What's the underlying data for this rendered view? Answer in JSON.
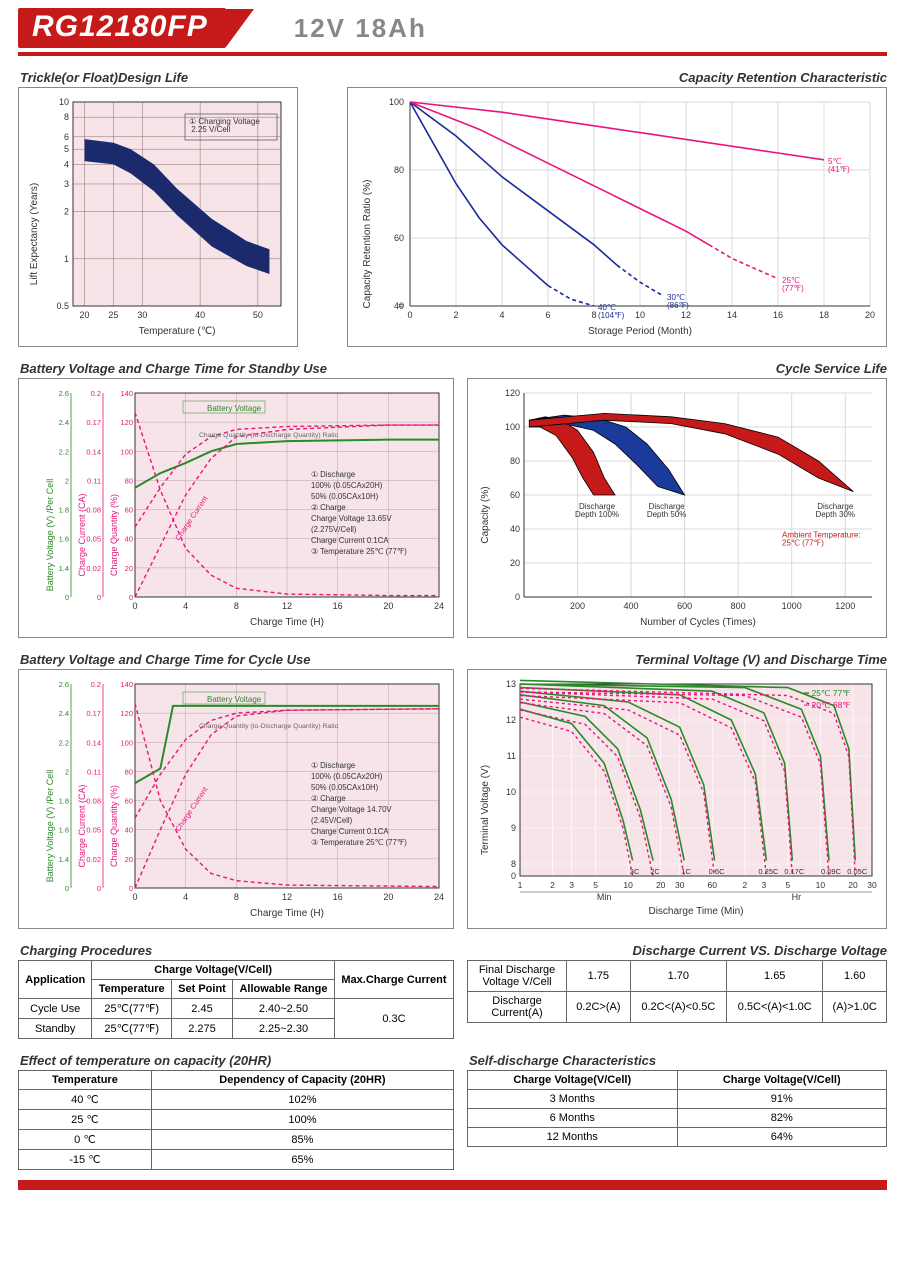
{
  "header": {
    "model": "RG12180FP",
    "spec": "12V  18Ah"
  },
  "chart_trickle": {
    "type": "area-band",
    "title": "Trickle(or Float)Design Life",
    "xlabel": "Temperature (℃)",
    "ylabel": "Lift  Expectancy  (Years)",
    "xticks": [
      20,
      25,
      30,
      40,
      50
    ],
    "yticks": [
      0.5,
      1,
      2,
      3,
      4,
      5,
      6,
      8,
      10
    ],
    "bg": "#f6e4e8",
    "grid": "#8a6a70",
    "band_color": "#1a2a6c",
    "band_upper": [
      [
        20,
        5.8
      ],
      [
        25,
        5.5
      ],
      [
        28,
        5.0
      ],
      [
        32,
        4.0
      ],
      [
        36,
        2.8
      ],
      [
        42,
        1.8
      ],
      [
        48,
        1.3
      ],
      [
        52,
        1.15
      ]
    ],
    "band_lower": [
      [
        20,
        4.2
      ],
      [
        25,
        4.0
      ],
      [
        28,
        3.5
      ],
      [
        32,
        2.7
      ],
      [
        36,
        1.9
      ],
      [
        42,
        1.2
      ],
      [
        48,
        0.9
      ],
      [
        52,
        0.8
      ]
    ],
    "callout": "① Charging Voltage\n    2.25 V/Cell"
  },
  "chart_retention": {
    "type": "line",
    "title": "Capacity  Retention  Characteristic",
    "xlabel": "Storage Period (Month)",
    "ylabel": "Capacity Retention Ratio (%)",
    "xticks": [
      0,
      2,
      4,
      6,
      8,
      10,
      12,
      14,
      16,
      18,
      20
    ],
    "yticks": [
      40,
      60,
      80,
      100
    ],
    "y_break": true,
    "bg": "#fff",
    "grid": "#d9d9d9",
    "series": [
      {
        "label": "40℃\n(104℉)",
        "color": "#1a2a9c",
        "dash": false,
        "data": [
          [
            0,
            100
          ],
          [
            1,
            88
          ],
          [
            2,
            76
          ],
          [
            3,
            66
          ],
          [
            4,
            58
          ],
          [
            5,
            52
          ],
          [
            6,
            46
          ]
        ],
        "dash_tail": [
          [
            6,
            46
          ],
          [
            7,
            42
          ],
          [
            8,
            40
          ]
        ]
      },
      {
        "label": "30℃\n(86℉)",
        "color": "#1a2a9c",
        "dash": false,
        "data": [
          [
            0,
            100
          ],
          [
            2,
            90
          ],
          [
            4,
            78
          ],
          [
            6,
            68
          ],
          [
            8,
            58
          ],
          [
            9,
            52
          ]
        ],
        "dash_tail": [
          [
            9,
            52
          ],
          [
            10,
            47
          ],
          [
            11,
            43
          ]
        ]
      },
      {
        "label": "25℃\n(77℉)",
        "color": "#e8157a",
        "dash": false,
        "data": [
          [
            0,
            100
          ],
          [
            3,
            92
          ],
          [
            6,
            82
          ],
          [
            9,
            72
          ],
          [
            12,
            62
          ],
          [
            13,
            58
          ]
        ],
        "dash_tail": [
          [
            13,
            58
          ],
          [
            14,
            54
          ],
          [
            15,
            51
          ],
          [
            16,
            48
          ]
        ]
      },
      {
        "label": "5℃\n(41℉)",
        "color": "#e8157a",
        "dash": false,
        "data": [
          [
            0,
            100
          ],
          [
            4,
            97
          ],
          [
            8,
            93
          ],
          [
            12,
            89
          ],
          [
            16,
            85
          ],
          [
            18,
            83
          ]
        ]
      }
    ]
  },
  "chart_standby": {
    "type": "multi-axis-line",
    "title": "Battery Voltage and Charge Time for Standby Use",
    "xlabel": "Charge Time (H)",
    "xticks": [
      0,
      4,
      8,
      12,
      16,
      20,
      24
    ],
    "axes": [
      {
        "label": "Charge Quantity (%)",
        "color": "#e8157a",
        "ticks": [
          0,
          20,
          40,
          60,
          80,
          100,
          120,
          140
        ]
      },
      {
        "label": "Charge Current (CA)",
        "color": "#e8157a",
        "ticks": [
          0,
          0.02,
          0.05,
          0.08,
          0.11,
          0.14,
          0.17,
          0.2
        ]
      },
      {
        "label": "Battery Voltage (V) /Per Cell",
        "color": "#2a8a2a",
        "ticks": [
          0,
          1.4,
          1.6,
          1.8,
          2.0,
          2.2,
          2.4,
          2.6
        ]
      }
    ],
    "bg": "#f6e4e8",
    "grid": "#8a6a70",
    "colors": {
      "green": "#2a8a2a",
      "pink": "#e8157a",
      "gray": "#666"
    },
    "lines": [
      {
        "name": "Battery Voltage",
        "color": "#2a8a2a",
        "dash": false,
        "w": 2,
        "data": [
          [
            0,
            1.95
          ],
          [
            2,
            2.05
          ],
          [
            4,
            2.12
          ],
          [
            6,
            2.2
          ],
          [
            8,
            2.25
          ],
          [
            12,
            2.27
          ],
          [
            20,
            2.28
          ],
          [
            24,
            2.28
          ]
        ]
      },
      {
        "name": "Charge Quantity 100",
        "color": "#e8157a",
        "dash": true,
        "w": 1.4,
        "data": [
          [
            0,
            0
          ],
          [
            2,
            35
          ],
          [
            4,
            70
          ],
          [
            6,
            95
          ],
          [
            8,
            110
          ],
          [
            12,
            115
          ],
          [
            20,
            118
          ],
          [
            24,
            118
          ]
        ]
      },
      {
        "name": "Charge Quantity 50",
        "color": "#e8157a",
        "dash": true,
        "w": 1.4,
        "data": [
          [
            0,
            48
          ],
          [
            2,
            75
          ],
          [
            4,
            98
          ],
          [
            6,
            110
          ],
          [
            8,
            115
          ],
          [
            12,
            117
          ],
          [
            20,
            118
          ],
          [
            24,
            118
          ]
        ]
      },
      {
        "name": "Charge Current",
        "color": "#e8157a",
        "dash": true,
        "w": 1.4,
        "data": [
          [
            0,
            0.18
          ],
          [
            2,
            0.1
          ],
          [
            4,
            0.04
          ],
          [
            6,
            0.015
          ],
          [
            8,
            0.006
          ],
          [
            12,
            0.002
          ],
          [
            20,
            0.001
          ],
          [
            24,
            0.001
          ]
        ],
        "axis": 1
      }
    ],
    "note_lines": [
      "① Discharge",
      "    100% (0.05CAx20H)",
      "    50% (0.05CAx10H)",
      "② Charge",
      "    Charge Voltage 13.65V",
      "    (2.275V/Cell)",
      "    Charge Current 0.1CA",
      "③ Temperature 25℃ (77℉)"
    ],
    "note_header": "Charge Quantity (to-Discharge Quantity) Ratio",
    "battery_voltage_label": "Battery Voltage",
    "charge_current_label": "Charge Current"
  },
  "chart_cyclelife": {
    "type": "filled-band",
    "title": "Cycle Service Life",
    "xlabel": "Number of Cycles (Times)",
    "ylabel": "Capacity (%)",
    "xticks": [
      200,
      400,
      600,
      800,
      1000,
      1200
    ],
    "yticks": [
      0,
      20,
      40,
      60,
      80,
      100,
      120
    ],
    "bg": "#fff",
    "grid": "#d9d9d9",
    "bands": [
      {
        "label": "Discharge\nDepth 100%",
        "fill": "#c61a1a",
        "outline": "#000",
        "upper": [
          [
            20,
            104
          ],
          [
            80,
            106
          ],
          [
            140,
            104
          ],
          [
            200,
            98
          ],
          [
            260,
            85
          ],
          [
            300,
            70
          ],
          [
            340,
            60
          ]
        ],
        "lower": [
          [
            20,
            100
          ],
          [
            60,
            100
          ],
          [
            120,
            95
          ],
          [
            180,
            82
          ],
          [
            220,
            70
          ],
          [
            260,
            60
          ],
          [
            340,
            60
          ]
        ]
      },
      {
        "label": "Discharge\nDepth 50%",
        "fill": "#1a3a9c",
        "outline": "#000",
        "upper": [
          [
            20,
            104
          ],
          [
            150,
            107
          ],
          [
            280,
            105
          ],
          [
            380,
            100
          ],
          [
            460,
            90
          ],
          [
            540,
            75
          ],
          [
            600,
            60
          ]
        ],
        "lower": [
          [
            20,
            100
          ],
          [
            150,
            102
          ],
          [
            260,
            98
          ],
          [
            340,
            90
          ],
          [
            420,
            78
          ],
          [
            500,
            65
          ],
          [
            600,
            60
          ]
        ]
      },
      {
        "label": "Discharge\nDepth 30%",
        "fill": "#c61a1a",
        "outline": "#000",
        "upper": [
          [
            20,
            104
          ],
          [
            300,
            108
          ],
          [
            550,
            106
          ],
          [
            750,
            102
          ],
          [
            950,
            94
          ],
          [
            1100,
            80
          ],
          [
            1230,
            62
          ]
        ],
        "lower": [
          [
            20,
            100
          ],
          [
            300,
            104
          ],
          [
            550,
            102
          ],
          [
            750,
            96
          ],
          [
            950,
            84
          ],
          [
            1100,
            70
          ],
          [
            1230,
            62
          ]
        ]
      }
    ],
    "note": "Ambient Temperature:\n25℃ (77℉)"
  },
  "chart_cycle": {
    "type": "multi-axis-line",
    "title": "Battery Voltage and Charge Time for Cycle Use",
    "xlabel": "Charge Time (H)",
    "xticks": [
      0,
      4,
      8,
      12,
      16,
      20,
      24
    ],
    "axes_same_as": "chart_standby",
    "note_lines": [
      "① Discharge",
      "    100% (0.05CAx20H)",
      "    50% (0.05CAx10H)",
      "② Charge",
      "    Charge Voltage 14.70V",
      "    (2.45V/Cell)",
      "    Charge Current 0.1CA",
      "③ Temperature 25℃ (77℉)"
    ],
    "lines": [
      {
        "name": "BV",
        "color": "#2a8a2a",
        "dash": false,
        "w": 2,
        "data": [
          [
            0,
            1.92
          ],
          [
            2,
            2.02
          ],
          [
            3,
            2.45
          ],
          [
            6,
            2.45
          ],
          [
            8,
            2.45
          ],
          [
            24,
            2.45
          ]
        ]
      },
      {
        "name": "CQ100",
        "color": "#e8157a",
        "dash": true,
        "w": 1.4,
        "data": [
          [
            0,
            0
          ],
          [
            2,
            40
          ],
          [
            4,
            78
          ],
          [
            6,
            105
          ],
          [
            8,
            118
          ],
          [
            12,
            122
          ],
          [
            24,
            123
          ]
        ]
      },
      {
        "name": "CQ50",
        "color": "#e8157a",
        "dash": true,
        "w": 1.4,
        "data": [
          [
            0,
            48
          ],
          [
            2,
            78
          ],
          [
            4,
            102
          ],
          [
            6,
            115
          ],
          [
            8,
            120
          ],
          [
            12,
            122
          ],
          [
            24,
            123
          ]
        ]
      },
      {
        "name": "CC",
        "color": "#e8157a",
        "dash": true,
        "w": 1.4,
        "data": [
          [
            0,
            0.18
          ],
          [
            2,
            0.08
          ],
          [
            4,
            0.03
          ],
          [
            6,
            0.01
          ],
          [
            8,
            0.005
          ],
          [
            12,
            0.002
          ],
          [
            24,
            0.001
          ]
        ],
        "axis": 1
      }
    ]
  },
  "chart_discharge": {
    "type": "log-line",
    "title": "Terminal Voltage (V) and Discharge Time",
    "xlabel": "Discharge Time (Min)",
    "ylabel": "Terminal Voltage (V)",
    "y_ticks": [
      0,
      8,
      9,
      10,
      11,
      12,
      13
    ],
    "y_break": true,
    "x_ticks_min": [
      1,
      2,
      3,
      5,
      10,
      20,
      30,
      60
    ],
    "x_ticks_hr": [
      2,
      3,
      5,
      10,
      20,
      30
    ],
    "x_unit_labels": {
      "min": "Min",
      "hr": "Hr"
    },
    "bg": "#f6e4e8",
    "grid": "#fff",
    "legend": [
      {
        "label": "25℃ 77℉",
        "color": "#2a8a2a"
      },
      {
        "label": "20℃ 68℉",
        "color": "#e8157a"
      }
    ],
    "rates": [
      "3C",
      "2C",
      "1C",
      "0.6C",
      "0.25C",
      "0.17C",
      "0.09C",
      "0.05C"
    ],
    "curves_25": [
      [
        [
          1,
          12.3
        ],
        [
          3,
          11.9
        ],
        [
          6,
          10.8
        ],
        [
          9,
          9.2
        ],
        [
          11,
          8.1
        ]
      ],
      [
        [
          1,
          12.5
        ],
        [
          4,
          12.1
        ],
        [
          8,
          11.2
        ],
        [
          13,
          9.5
        ],
        [
          17,
          8.1
        ]
      ],
      [
        [
          1,
          12.7
        ],
        [
          6,
          12.4
        ],
        [
          15,
          11.5
        ],
        [
          25,
          9.8
        ],
        [
          33,
          8.1
        ]
      ],
      [
        [
          1,
          12.8
        ],
        [
          10,
          12.5
        ],
        [
          30,
          11.8
        ],
        [
          50,
          10.2
        ],
        [
          63,
          8.1
        ]
      ],
      [
        [
          1,
          12.9
        ],
        [
          30,
          12.7
        ],
        [
          90,
          12.0
        ],
        [
          150,
          10.5
        ],
        [
          190,
          8.1
        ]
      ],
      [
        [
          1,
          13.0
        ],
        [
          60,
          12.8
        ],
        [
          180,
          12.2
        ],
        [
          280,
          10.8
        ],
        [
          330,
          8.1
        ]
      ],
      [
        [
          1,
          13.0
        ],
        [
          120,
          12.9
        ],
        [
          400,
          12.3
        ],
        [
          600,
          11.0
        ],
        [
          720,
          8.1
        ]
      ],
      [
        [
          1,
          13.1
        ],
        [
          300,
          12.9
        ],
        [
          800,
          12.4
        ],
        [
          1100,
          11.2
        ],
        [
          1260,
          8.1
        ]
      ]
    ],
    "curves_20_offset": -0.22
  },
  "table_charging": {
    "title": "Charging Procedures",
    "headers": {
      "app": "Application",
      "cv": "Charge Voltage(V/Cell)",
      "temp": "Temperature",
      "set": "Set Point",
      "range": "Allowable Range",
      "max": "Max.Charge Current"
    },
    "rows": [
      {
        "app": "Cycle Use",
        "temp": "25℃(77℉)",
        "set": "2.45",
        "range": "2.40~2.50"
      },
      {
        "app": "Standby",
        "temp": "25℃(77℉)",
        "set": "2.275",
        "range": "2.25~2.30"
      }
    ],
    "max": "0.3C"
  },
  "table_dcdv": {
    "title": "Discharge Current VS. Discharge Voltage",
    "row1_label": "Final Discharge\nVoltage V/Cell",
    "row1": [
      "1.75",
      "1.70",
      "1.65",
      "1.60"
    ],
    "row2_label": "Discharge\nCurrent(A)",
    "row2": [
      "0.2C>(A)",
      "0.2C<(A)<0.5C",
      "0.5C<(A)<1.0C",
      "(A)>1.0C"
    ]
  },
  "table_temp": {
    "title": "Effect of temperature on capacity (20HR)",
    "headers": [
      "Temperature",
      "Dependency of Capacity (20HR)"
    ],
    "rows": [
      [
        "40 ℃",
        "102%"
      ],
      [
        "25 ℃",
        "100%"
      ],
      [
        "0 ℃",
        "85%"
      ],
      [
        "-15 ℃",
        "65%"
      ]
    ]
  },
  "table_self": {
    "title": "Self-discharge Characteristics",
    "headers": [
      "Charge Voltage(V/Cell)",
      "Charge Voltage(V/Cell)"
    ],
    "rows": [
      [
        "3 Months",
        "91%"
      ],
      [
        "6 Months",
        "82%"
      ],
      [
        "12 Months",
        "64%"
      ]
    ]
  }
}
